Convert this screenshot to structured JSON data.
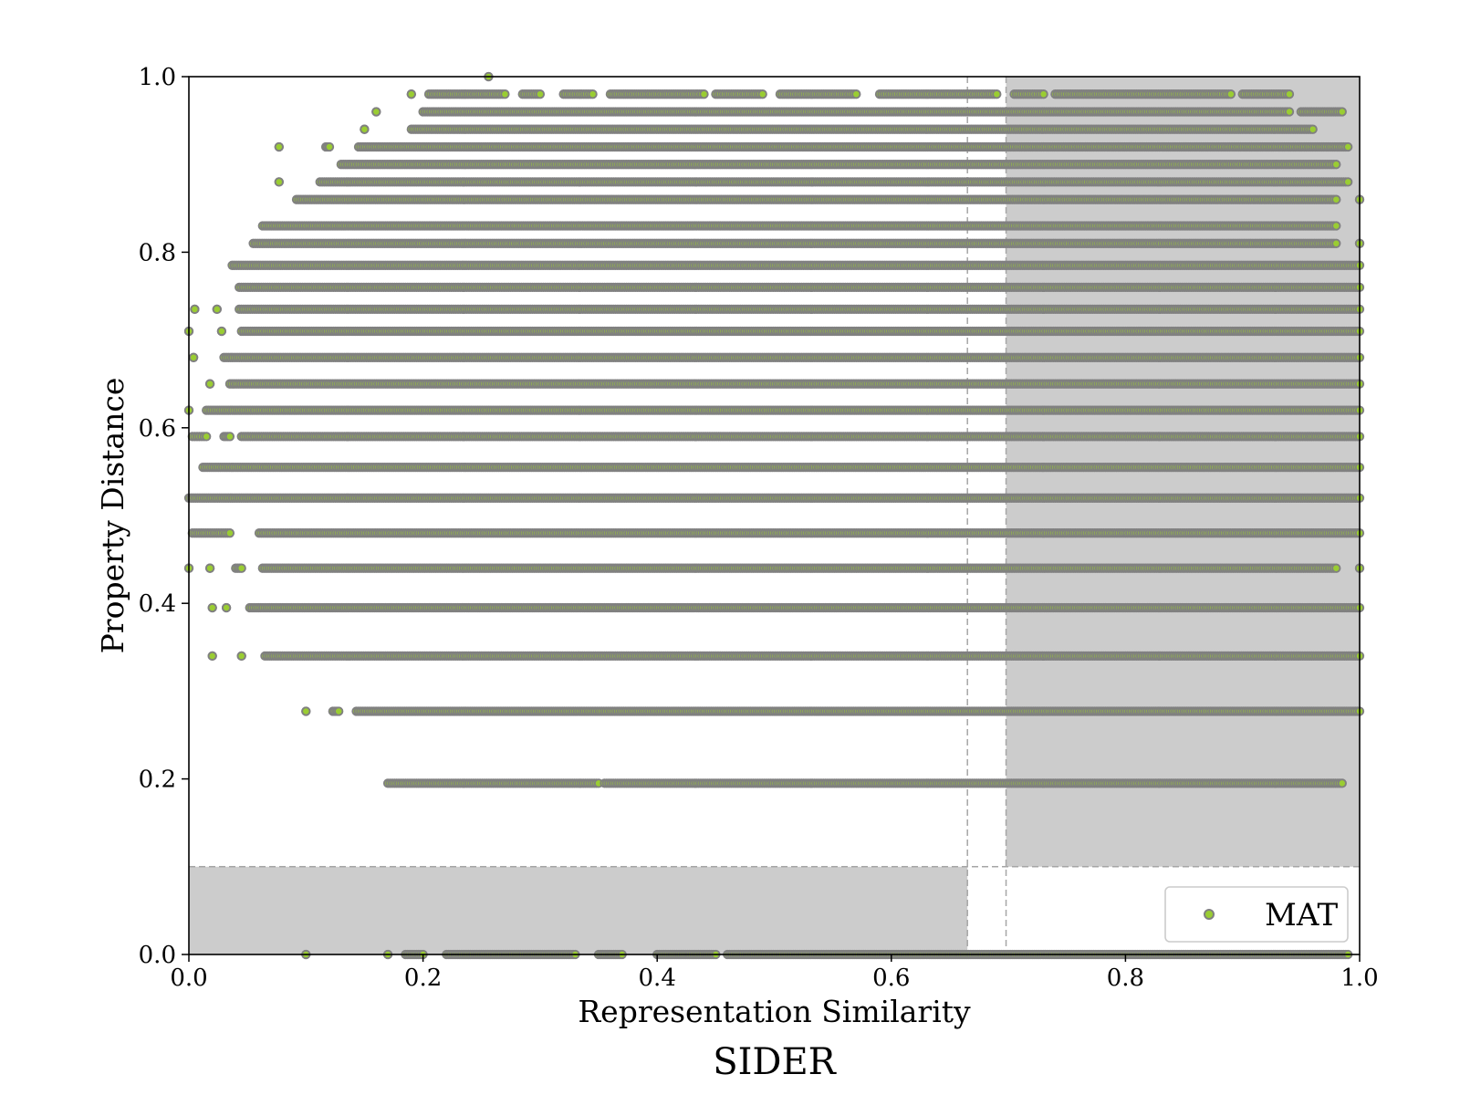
{
  "chart_data": {
    "type": "scatter",
    "title": "SIDER",
    "xlabel": "Representation Similarity",
    "ylabel": "Property Distance",
    "xlim": [
      0.0,
      1.0
    ],
    "ylim": [
      0.0,
      1.0
    ],
    "xticks": [
      0.0,
      0.2,
      0.4,
      0.6,
      0.8,
      1.0
    ],
    "yticks": [
      0.0,
      0.2,
      0.4,
      0.6,
      0.8,
      1.0
    ],
    "xtick_labels": [
      "0.0",
      "0.2",
      "0.4",
      "0.6",
      "0.8",
      "1.0"
    ],
    "ytick_labels": [
      "0.0",
      "0.2",
      "0.4",
      "0.6",
      "0.8",
      "1.0"
    ],
    "grid": false,
    "legend": {
      "position": "lower-right",
      "entries": [
        "MAT"
      ]
    },
    "series": [
      {
        "name": "MAT",
        "marker_fill": "#9ACD32",
        "marker_edge": "#808080",
        "rows": [
          {
            "y": 1.0,
            "x_min": 0.256,
            "x_max": 0.256,
            "segments": [
              [
                0.256,
                0.256
              ]
            ]
          },
          {
            "y": 0.98,
            "x_min": 0.19,
            "x_max": 0.94,
            "segments": [
              [
                0.19,
                0.19
              ],
              [
                0.205,
                0.27
              ],
              [
                0.285,
                0.3
              ],
              [
                0.32,
                0.345
              ],
              [
                0.36,
                0.44
              ],
              [
                0.45,
                0.49
              ],
              [
                0.505,
                0.57
              ],
              [
                0.59,
                0.69
              ],
              [
                0.705,
                0.73
              ],
              [
                0.74,
                0.89
              ],
              [
                0.9,
                0.94
              ]
            ]
          },
          {
            "y": 0.96,
            "x_min": 0.16,
            "x_max": 0.985,
            "segments": [
              [
                0.16,
                0.16
              ],
              [
                0.2,
                0.94
              ],
              [
                0.95,
                0.985
              ]
            ]
          },
          {
            "y": 0.94,
            "x_min": 0.15,
            "x_max": 0.96,
            "segments": [
              [
                0.15,
                0.15
              ],
              [
                0.19,
                0.96
              ]
            ]
          },
          {
            "y": 0.92,
            "x_min": 0.077,
            "x_max": 0.99,
            "segments": [
              [
                0.077,
                0.077
              ],
              [
                0.117,
                0.12
              ],
              [
                0.145,
                0.99
              ]
            ]
          },
          {
            "y": 0.9,
            "x_min": 0.13,
            "x_max": 0.98,
            "segments": [
              [
                0.13,
                0.98
              ]
            ]
          },
          {
            "y": 0.88,
            "x_min": 0.077,
            "x_max": 0.99,
            "segments": [
              [
                0.077,
                0.077
              ],
              [
                0.112,
                0.99
              ]
            ]
          },
          {
            "y": 0.86,
            "x_min": 0.092,
            "x_max": 1.0,
            "segments": [
              [
                0.092,
                0.98
              ],
              [
                1.0,
                1.0
              ]
            ]
          },
          {
            "y": 0.83,
            "x_min": 0.063,
            "x_max": 0.98,
            "segments": [
              [
                0.063,
                0.98
              ]
            ]
          },
          {
            "y": 0.81,
            "x_min": 0.055,
            "x_max": 1.0,
            "segments": [
              [
                0.055,
                0.98
              ],
              [
                1.0,
                1.0
              ]
            ]
          },
          {
            "y": 0.785,
            "x_min": 0.037,
            "x_max": 1.0,
            "segments": [
              [
                0.037,
                1.0
              ]
            ]
          },
          {
            "y": 0.76,
            "x_min": 0.043,
            "x_max": 1.0,
            "segments": [
              [
                0.043,
                1.0
              ]
            ]
          },
          {
            "y": 0.735,
            "x_min": 0.005,
            "x_max": 1.0,
            "segments": [
              [
                0.005,
                0.005
              ],
              [
                0.024,
                0.024
              ],
              [
                0.043,
                1.0
              ]
            ]
          },
          {
            "y": 0.71,
            "x_min": 0.0,
            "x_max": 1.0,
            "segments": [
              [
                0.0,
                0.0
              ],
              [
                0.028,
                0.028
              ],
              [
                0.045,
                1.0
              ]
            ]
          },
          {
            "y": 0.68,
            "x_min": 0.004,
            "x_max": 1.0,
            "segments": [
              [
                0.004,
                0.004
              ],
              [
                0.03,
                1.0
              ]
            ]
          },
          {
            "y": 0.65,
            "x_min": 0.018,
            "x_max": 1.0,
            "segments": [
              [
                0.018,
                0.018
              ],
              [
                0.035,
                1.0
              ]
            ]
          },
          {
            "y": 0.62,
            "x_min": 0.0,
            "x_max": 1.0,
            "segments": [
              [
                0.0,
                0.0
              ],
              [
                0.015,
                1.0
              ]
            ]
          },
          {
            "y": 0.59,
            "x_min": 0.003,
            "x_max": 1.0,
            "segments": [
              [
                0.003,
                0.015
              ],
              [
                0.03,
                0.035
              ],
              [
                0.045,
                1.0
              ]
            ]
          },
          {
            "y": 0.555,
            "x_min": 0.012,
            "x_max": 1.0,
            "segments": [
              [
                0.012,
                1.0
              ]
            ]
          },
          {
            "y": 0.52,
            "x_min": 0.0,
            "x_max": 1.0,
            "segments": [
              [
                0.0,
                1.0
              ]
            ]
          },
          {
            "y": 0.48,
            "x_min": 0.003,
            "x_max": 1.0,
            "segments": [
              [
                0.003,
                0.035
              ],
              [
                0.06,
                1.0
              ]
            ]
          },
          {
            "y": 0.44,
            "x_min": 0.0,
            "x_max": 1.0,
            "segments": [
              [
                0.0,
                0.0
              ],
              [
                0.018,
                0.018
              ],
              [
                0.04,
                0.045
              ],
              [
                0.063,
                0.98
              ],
              [
                1.0,
                1.0
              ]
            ]
          },
          {
            "y": 0.395,
            "x_min": 0.02,
            "x_max": 1.0,
            "segments": [
              [
                0.02,
                0.02
              ],
              [
                0.032,
                0.032
              ],
              [
                0.052,
                1.0
              ]
            ]
          },
          {
            "y": 0.34,
            "x_min": 0.02,
            "x_max": 1.0,
            "segments": [
              [
                0.02,
                0.02
              ],
              [
                0.045,
                0.045
              ],
              [
                0.065,
                1.0
              ]
            ]
          },
          {
            "y": 0.277,
            "x_min": 0.1,
            "x_max": 1.0,
            "segments": [
              [
                0.1,
                0.1
              ],
              [
                0.123,
                0.128
              ],
              [
                0.143,
                1.0
              ]
            ]
          },
          {
            "y": 0.195,
            "x_min": 0.17,
            "x_max": 0.985,
            "segments": [
              [
                0.17,
                0.35
              ],
              [
                0.355,
                0.985
              ]
            ]
          },
          {
            "y": 0.0,
            "x_min": 0.1,
            "x_max": 0.99,
            "segments": [
              [
                0.1,
                0.1
              ],
              [
                0.17,
                0.17
              ],
              [
                0.185,
                0.2
              ],
              [
                0.22,
                0.33
              ],
              [
                0.35,
                0.37
              ],
              [
                0.4,
                0.45
              ],
              [
                0.46,
                0.99
              ]
            ]
          }
        ]
      }
    ],
    "reference_lines": [
      {
        "orientation": "vertical",
        "x": 0.665,
        "style": "dashed",
        "color": "#a6a6a6"
      },
      {
        "orientation": "vertical",
        "x": 0.698,
        "style": "dashed",
        "color": "#a6a6a6"
      },
      {
        "orientation": "horizontal",
        "y": 0.1,
        "style": "dashed",
        "color": "#a6a6a6"
      }
    ],
    "shaded_regions": [
      {
        "x": [
          0.698,
          1.0
        ],
        "y": [
          0.1,
          1.0
        ],
        "color": "#cccccc"
      },
      {
        "x": [
          0.0,
          0.665
        ],
        "y": [
          0.0,
          0.1
        ],
        "color": "#cccccc"
      }
    ]
  }
}
